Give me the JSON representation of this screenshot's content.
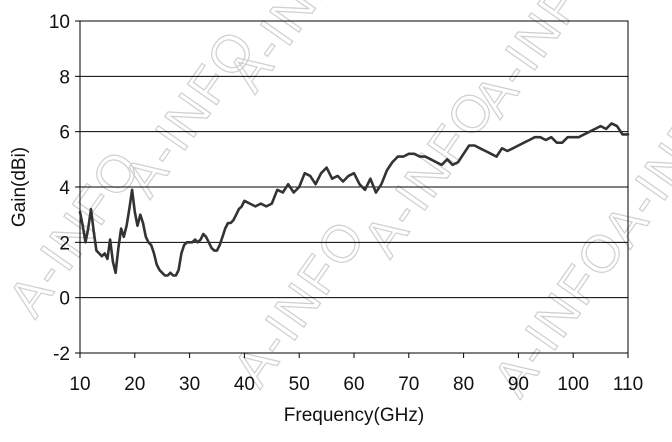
{
  "watermark": {
    "text": "A-INFO"
  },
  "chart_data": {
    "type": "line",
    "title": "",
    "xlabel": "Frequency(GHz)",
    "ylabel": "Gain(dBi)",
    "xlim": [
      10,
      110
    ],
    "ylim": [
      -2,
      10
    ],
    "x_ticks": [
      10,
      20,
      30,
      40,
      50,
      60,
      70,
      80,
      90,
      100,
      110
    ],
    "y_ticks": [
      -2,
      0,
      2,
      4,
      6,
      8,
      10
    ],
    "grid": {
      "x": false,
      "y": true
    },
    "legend": "none",
    "line_color": "#333333",
    "series": [
      {
        "x": [
          10,
          10.5,
          11,
          11.5,
          12,
          12.5,
          13,
          13.5,
          14,
          14.5,
          15,
          15.5,
          16,
          16.5,
          17,
          17.5,
          18,
          18.5,
          19,
          19.5,
          20,
          20.5,
          21,
          21.5,
          22,
          22.5,
          23,
          23.5,
          24,
          24.5,
          25,
          25.5,
          26,
          26.5,
          27,
          27.5,
          28,
          28.5,
          29,
          29.5,
          30,
          30.5,
          31,
          31.5,
          32,
          32.5,
          33,
          33.5,
          34,
          34.5,
          35,
          35.5,
          36,
          36.5,
          37,
          37.5,
          38,
          38.5,
          39,
          39.5,
          40,
          41,
          42,
          43,
          44,
          45,
          46,
          47,
          48,
          49,
          50,
          51,
          52,
          53,
          54,
          55,
          56,
          57,
          58,
          59,
          60,
          61,
          62,
          63,
          64,
          65,
          66,
          67,
          68,
          69,
          70,
          71,
          72,
          73,
          74,
          75,
          76,
          77,
          78,
          79,
          80,
          81,
          82,
          83,
          84,
          85,
          86,
          87,
          88,
          89,
          90,
          91,
          92,
          93,
          94,
          95,
          96,
          97,
          98,
          99,
          100,
          101,
          102,
          103,
          104,
          105,
          106,
          107,
          108,
          109,
          110
        ],
        "values": [
          3.1,
          2.6,
          2.0,
          2.5,
          3.2,
          2.4,
          1.7,
          1.6,
          1.5,
          1.6,
          1.4,
          2.1,
          1.3,
          0.9,
          1.8,
          2.5,
          2.2,
          2.6,
          3.2,
          3.9,
          3.1,
          2.6,
          3.0,
          2.7,
          2.2,
          2.0,
          1.9,
          1.6,
          1.2,
          1.0,
          0.9,
          0.8,
          0.8,
          0.9,
          0.8,
          0.8,
          1.0,
          1.6,
          1.9,
          2.0,
          2.0,
          2.0,
          2.1,
          2.0,
          2.1,
          2.3,
          2.2,
          2.0,
          1.8,
          1.7,
          1.7,
          1.9,
          2.2,
          2.5,
          2.7,
          2.7,
          2.8,
          3.0,
          3.2,
          3.3,
          3.5,
          3.4,
          3.3,
          3.4,
          3.3,
          3.4,
          3.9,
          3.8,
          4.1,
          3.8,
          4.0,
          4.5,
          4.4,
          4.1,
          4.5,
          4.7,
          4.3,
          4.4,
          4.2,
          4.4,
          4.5,
          4.1,
          3.9,
          4.3,
          3.8,
          4.1,
          4.6,
          4.9,
          5.1,
          5.1,
          5.2,
          5.2,
          5.1,
          5.1,
          5.0,
          4.9,
          4.8,
          5.0,
          4.8,
          4.9,
          5.2,
          5.5,
          5.5,
          5.4,
          5.3,
          5.2,
          5.1,
          5.4,
          5.3,
          5.4,
          5.5,
          5.6,
          5.7,
          5.8,
          5.8,
          5.7,
          5.8,
          5.6,
          5.6,
          5.8,
          5.8,
          5.8,
          5.9,
          6.0,
          6.1,
          6.2,
          6.1,
          6.3,
          6.2,
          5.9,
          5.9
        ]
      }
    ]
  }
}
